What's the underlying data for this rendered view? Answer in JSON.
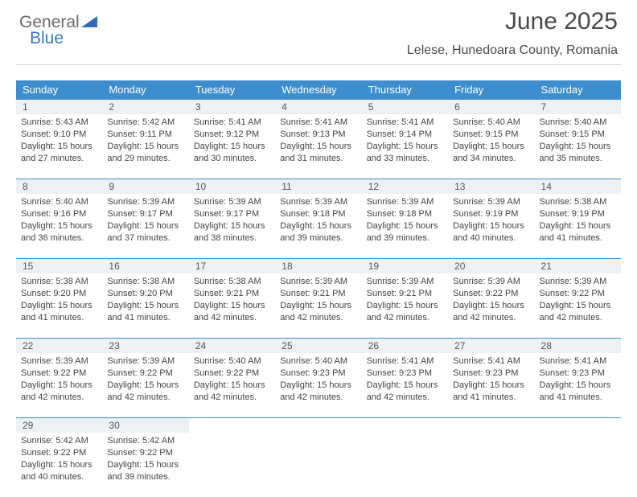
{
  "colors": {
    "header_bg": "#3d8ecf",
    "header_fg": "#ffffff",
    "daynum_bg": "#eef1f3",
    "week_border": "#3d8ecf",
    "text": "#444444",
    "title": "#4a4a4a"
  },
  "logo": {
    "part1": "General",
    "part2": "Blue"
  },
  "title": "June 2025",
  "subtitle": "Lelese, Hunedoara County, Romania",
  "day_headers": [
    "Sunday",
    "Monday",
    "Tuesday",
    "Wednesday",
    "Thursday",
    "Friday",
    "Saturday"
  ],
  "days": [
    {
      "num": "1",
      "sunrise": "Sunrise: 5:43 AM",
      "sunset": "Sunset: 9:10 PM",
      "d1": "Daylight: 15 hours",
      "d2": "and 27 minutes."
    },
    {
      "num": "2",
      "sunrise": "Sunrise: 5:42 AM",
      "sunset": "Sunset: 9:11 PM",
      "d1": "Daylight: 15 hours",
      "d2": "and 29 minutes."
    },
    {
      "num": "3",
      "sunrise": "Sunrise: 5:41 AM",
      "sunset": "Sunset: 9:12 PM",
      "d1": "Daylight: 15 hours",
      "d2": "and 30 minutes."
    },
    {
      "num": "4",
      "sunrise": "Sunrise: 5:41 AM",
      "sunset": "Sunset: 9:13 PM",
      "d1": "Daylight: 15 hours",
      "d2": "and 31 minutes."
    },
    {
      "num": "5",
      "sunrise": "Sunrise: 5:41 AM",
      "sunset": "Sunset: 9:14 PM",
      "d1": "Daylight: 15 hours",
      "d2": "and 33 minutes."
    },
    {
      "num": "6",
      "sunrise": "Sunrise: 5:40 AM",
      "sunset": "Sunset: 9:15 PM",
      "d1": "Daylight: 15 hours",
      "d2": "and 34 minutes."
    },
    {
      "num": "7",
      "sunrise": "Sunrise: 5:40 AM",
      "sunset": "Sunset: 9:15 PM",
      "d1": "Daylight: 15 hours",
      "d2": "and 35 minutes."
    },
    {
      "num": "8",
      "sunrise": "Sunrise: 5:40 AM",
      "sunset": "Sunset: 9:16 PM",
      "d1": "Daylight: 15 hours",
      "d2": "and 36 minutes."
    },
    {
      "num": "9",
      "sunrise": "Sunrise: 5:39 AM",
      "sunset": "Sunset: 9:17 PM",
      "d1": "Daylight: 15 hours",
      "d2": "and 37 minutes."
    },
    {
      "num": "10",
      "sunrise": "Sunrise: 5:39 AM",
      "sunset": "Sunset: 9:17 PM",
      "d1": "Daylight: 15 hours",
      "d2": "and 38 minutes."
    },
    {
      "num": "11",
      "sunrise": "Sunrise: 5:39 AM",
      "sunset": "Sunset: 9:18 PM",
      "d1": "Daylight: 15 hours",
      "d2": "and 39 minutes."
    },
    {
      "num": "12",
      "sunrise": "Sunrise: 5:39 AM",
      "sunset": "Sunset: 9:18 PM",
      "d1": "Daylight: 15 hours",
      "d2": "and 39 minutes."
    },
    {
      "num": "13",
      "sunrise": "Sunrise: 5:39 AM",
      "sunset": "Sunset: 9:19 PM",
      "d1": "Daylight: 15 hours",
      "d2": "and 40 minutes."
    },
    {
      "num": "14",
      "sunrise": "Sunrise: 5:38 AM",
      "sunset": "Sunset: 9:19 PM",
      "d1": "Daylight: 15 hours",
      "d2": "and 41 minutes."
    },
    {
      "num": "15",
      "sunrise": "Sunrise: 5:38 AM",
      "sunset": "Sunset: 9:20 PM",
      "d1": "Daylight: 15 hours",
      "d2": "and 41 minutes."
    },
    {
      "num": "16",
      "sunrise": "Sunrise: 5:38 AM",
      "sunset": "Sunset: 9:20 PM",
      "d1": "Daylight: 15 hours",
      "d2": "and 41 minutes."
    },
    {
      "num": "17",
      "sunrise": "Sunrise: 5:38 AM",
      "sunset": "Sunset: 9:21 PM",
      "d1": "Daylight: 15 hours",
      "d2": "and 42 minutes."
    },
    {
      "num": "18",
      "sunrise": "Sunrise: 5:39 AM",
      "sunset": "Sunset: 9:21 PM",
      "d1": "Daylight: 15 hours",
      "d2": "and 42 minutes."
    },
    {
      "num": "19",
      "sunrise": "Sunrise: 5:39 AM",
      "sunset": "Sunset: 9:21 PM",
      "d1": "Daylight: 15 hours",
      "d2": "and 42 minutes."
    },
    {
      "num": "20",
      "sunrise": "Sunrise: 5:39 AM",
      "sunset": "Sunset: 9:22 PM",
      "d1": "Daylight: 15 hours",
      "d2": "and 42 minutes."
    },
    {
      "num": "21",
      "sunrise": "Sunrise: 5:39 AM",
      "sunset": "Sunset: 9:22 PM",
      "d1": "Daylight: 15 hours",
      "d2": "and 42 minutes."
    },
    {
      "num": "22",
      "sunrise": "Sunrise: 5:39 AM",
      "sunset": "Sunset: 9:22 PM",
      "d1": "Daylight: 15 hours",
      "d2": "and 42 minutes."
    },
    {
      "num": "23",
      "sunrise": "Sunrise: 5:39 AM",
      "sunset": "Sunset: 9:22 PM",
      "d1": "Daylight: 15 hours",
      "d2": "and 42 minutes."
    },
    {
      "num": "24",
      "sunrise": "Sunrise: 5:40 AM",
      "sunset": "Sunset: 9:22 PM",
      "d1": "Daylight: 15 hours",
      "d2": "and 42 minutes."
    },
    {
      "num": "25",
      "sunrise": "Sunrise: 5:40 AM",
      "sunset": "Sunset: 9:23 PM",
      "d1": "Daylight: 15 hours",
      "d2": "and 42 minutes."
    },
    {
      "num": "26",
      "sunrise": "Sunrise: 5:41 AM",
      "sunset": "Sunset: 9:23 PM",
      "d1": "Daylight: 15 hours",
      "d2": "and 42 minutes."
    },
    {
      "num": "27",
      "sunrise": "Sunrise: 5:41 AM",
      "sunset": "Sunset: 9:23 PM",
      "d1": "Daylight: 15 hours",
      "d2": "and 41 minutes."
    },
    {
      "num": "28",
      "sunrise": "Sunrise: 5:41 AM",
      "sunset": "Sunset: 9:23 PM",
      "d1": "Daylight: 15 hours",
      "d2": "and 41 minutes."
    },
    {
      "num": "29",
      "sunrise": "Sunrise: 5:42 AM",
      "sunset": "Sunset: 9:22 PM",
      "d1": "Daylight: 15 hours",
      "d2": "and 40 minutes."
    },
    {
      "num": "30",
      "sunrise": "Sunrise: 5:42 AM",
      "sunset": "Sunset: 9:22 PM",
      "d1": "Daylight: 15 hours",
      "d2": "and 39 minutes."
    }
  ]
}
